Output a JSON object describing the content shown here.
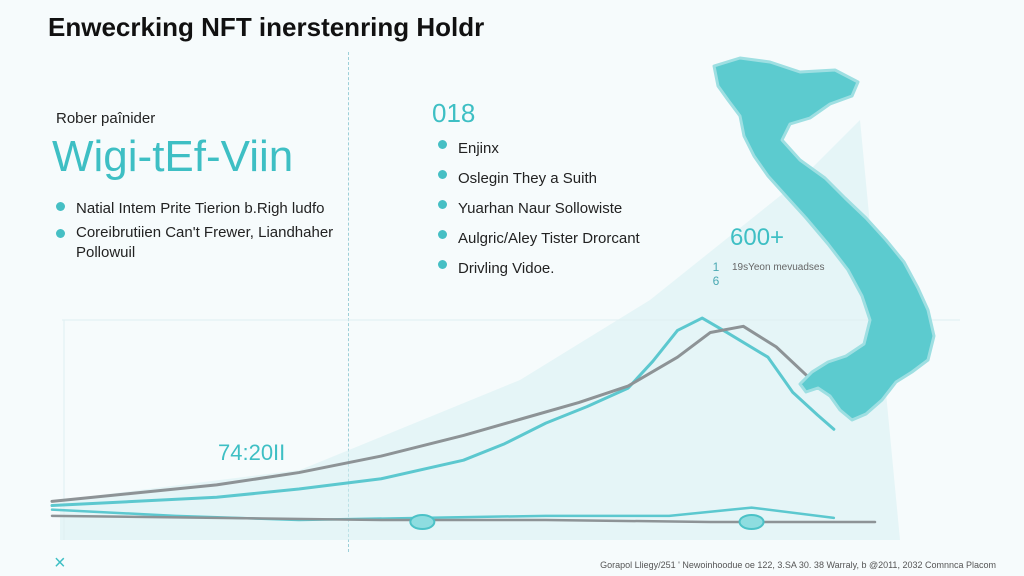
{
  "header": {
    "title": "Enwecrking NFT inerstenring Holdr"
  },
  "left_panel": {
    "subtitle": "Rober paînider",
    "hero": "Wigi-tEf-Viin",
    "bullets": [
      "Natial Intem Prite Tierion b.Righ ludfo",
      "Coreibrutiien Can't Frewer, Liandhaher Pollowuil"
    ]
  },
  "right_panel": {
    "label": "018",
    "bullets": [
      "Enjinx",
      "Oslegin They a Suith",
      "Yuarhan Naur Sollowiste",
      "Aulgric/Aley Tister Drorcant",
      "Drivling Vidoe."
    ]
  },
  "stats": {
    "big": "600+",
    "mark": "1 6",
    "note": "19sYeon mevuadses",
    "mid": "74:20II"
  },
  "footer": {
    "credit": "Gorapol Lliegy/251 ' Newoinhoodue oe 122, 3.SA 30. 38 Warraly, b @2011, 2032 Comnnca Placom"
  },
  "icons": {
    "close": "×"
  },
  "colors": {
    "accent": "#3ebfc4",
    "line_teal": "#5cc8cf",
    "line_gray": "#8d9396",
    "area_fill": "#bfe8ec",
    "map_fill": "#5ccbcf"
  },
  "chart_data": {
    "type": "line",
    "title": "",
    "xlabel": "",
    "ylabel": "",
    "grid": false,
    "xlim": [
      0,
      100
    ],
    "ylim": [
      0,
      100
    ],
    "series": [
      {
        "color": "#5cc8cf",
        "x": [
          0,
          10,
          20,
          30,
          40,
          50,
          55,
          60,
          65,
          70,
          73,
          76,
          79,
          82,
          87,
          90,
          93,
          95
        ],
        "y": [
          8,
          10,
          12,
          16,
          21,
          30,
          38,
          48,
          56,
          65,
          78,
          93,
          99,
          92,
          80,
          63,
          52,
          45
        ]
      },
      {
        "color": "#8d9396",
        "x": [
          0,
          10,
          20,
          30,
          40,
          50,
          57,
          64,
          70,
          76,
          80,
          84,
          88,
          92,
          97
        ],
        "y": [
          10,
          14,
          18,
          24,
          32,
          42,
          50,
          58,
          66,
          80,
          92,
          95,
          85,
          70,
          60
        ]
      },
      {
        "color": "#5cc8cf",
        "x": [
          0,
          15,
          30,
          45,
          60,
          75,
          85,
          95
        ],
        "y": [
          6,
          3,
          1,
          2,
          3,
          3,
          7,
          2
        ]
      },
      {
        "color": "#8d9396",
        "x": [
          0,
          20,
          40,
          60,
          80,
          100
        ],
        "y": [
          3,
          2,
          1,
          1,
          0,
          0
        ]
      }
    ],
    "points": [
      {
        "x": 45,
        "y": 0
      },
      {
        "x": 85,
        "y": 0
      }
    ]
  }
}
